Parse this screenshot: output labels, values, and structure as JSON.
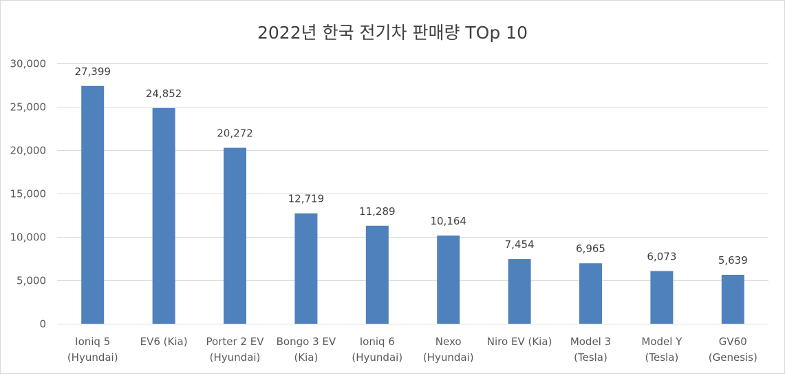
{
  "chart_data": {
    "type": "bar",
    "title": "2022년 한국 전기차 판매량 TOp 10",
    "categories": [
      [
        "Ioniq 5",
        "(Hyundai)"
      ],
      [
        "EV6 (Kia)"
      ],
      [
        "Porter 2 EV",
        "(Hyundai)"
      ],
      [
        "Bongo 3 EV",
        "(Kia)"
      ],
      [
        "Ioniq 6",
        "(Hyundai)"
      ],
      [
        "Nexo",
        "(Hyundai)"
      ],
      [
        "Niro EV (Kia)"
      ],
      [
        "Model 3",
        "(Tesla)"
      ],
      [
        "Model Y",
        "(Tesla)"
      ],
      [
        "GV60",
        "(Genesis)"
      ]
    ],
    "values": [
      27399,
      24852,
      20272,
      12719,
      11289,
      10164,
      7454,
      6965,
      6073,
      5639
    ],
    "data_labels": [
      "27,399",
      "24,852",
      "20,272",
      "12,719",
      "11,289",
      "10,164",
      "7,454",
      "6,965",
      "6,073",
      "5,639"
    ],
    "ylim": [
      0,
      30000
    ],
    "yticks": [
      0,
      5000,
      10000,
      15000,
      20000,
      25000,
      30000
    ],
    "ytick_labels": [
      "0",
      "5,000",
      "10,000",
      "15,000",
      "20,000",
      "25,000",
      "30,000"
    ],
    "grid": true,
    "legend": "none",
    "xlabel": "",
    "ylabel": "",
    "colors": {
      "bar": "#4f81bd",
      "grid": "#d9d9d9",
      "axis": "#d9d9d9"
    }
  }
}
